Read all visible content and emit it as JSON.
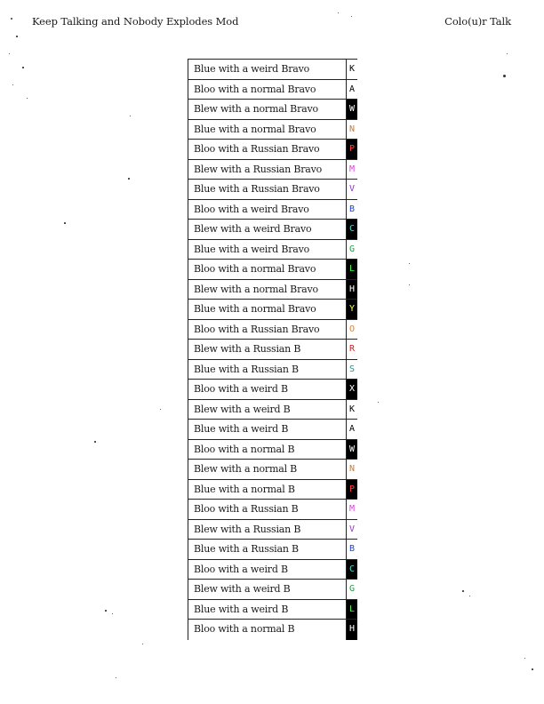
{
  "header": {
    "left": "Keep Talking and Nobody Explodes Mod",
    "right": "Colo(u)r Talk"
  },
  "rows": [
    {
      "phrase": "Blue with a weird Bravo",
      "letter": "K",
      "fg": "#000000",
      "bg": "#ffffff"
    },
    {
      "phrase": "Bloo with a normal Bravo",
      "letter": "A",
      "fg": "#000000",
      "bg": "#ffffff"
    },
    {
      "phrase": "Blew with a normal Bravo",
      "letter": "W",
      "fg": "#ffffff",
      "bg": "#000000"
    },
    {
      "phrase": "Blue with a normal Bravo",
      "letter": "N",
      "fg": "#c87a3a",
      "bg": "#ffffff"
    },
    {
      "phrase": "Bloo with a Russian Bravo",
      "letter": "P",
      "fg": "#ff4040",
      "bg": "#000000"
    },
    {
      "phrase": "Blew with a Russian Bravo",
      "letter": "M",
      "fg": "#e040e0",
      "bg": "#ffffff"
    },
    {
      "phrase": "Blue with a Russian Bravo",
      "letter": "V",
      "fg": "#9a30c8",
      "bg": "#ffffff"
    },
    {
      "phrase": "Bloo with a weird Bravo",
      "letter": "B",
      "fg": "#2040d0",
      "bg": "#ffffff"
    },
    {
      "phrase": "Blew with a weird Bravo",
      "letter": "C",
      "fg": "#40e0e0",
      "bg": "#000000"
    },
    {
      "phrase": "Blue with a weird Bravo",
      "letter": "G",
      "fg": "#20a040",
      "bg": "#ffffff"
    },
    {
      "phrase": "Bloo with a normal Bravo",
      "letter": "L",
      "fg": "#40ff40",
      "bg": "#000000"
    },
    {
      "phrase": "Blew with a normal Bravo",
      "letter": "H",
      "fg": "#ffffff",
      "bg": "#000000"
    },
    {
      "phrase": "Blue with a normal Bravo",
      "letter": "Y",
      "fg": "#ffff40",
      "bg": "#000000"
    },
    {
      "phrase": "Bloo with a Russian Bravo",
      "letter": "O",
      "fg": "#e08030",
      "bg": "#ffffff"
    },
    {
      "phrase": "Blew with a Russian B",
      "letter": "R",
      "fg": "#d02020",
      "bg": "#ffffff"
    },
    {
      "phrase": "Blue with a Russian B",
      "letter": "S",
      "fg": "#209090",
      "bg": "#ffffff"
    },
    {
      "phrase": "Bloo with a weird B",
      "letter": "X",
      "fg": "#ffffff",
      "bg": "#000000"
    },
    {
      "phrase": "Blew with a weird B",
      "letter": "K",
      "fg": "#000000",
      "bg": "#ffffff"
    },
    {
      "phrase": "Blue with a weird B",
      "letter": "A",
      "fg": "#000000",
      "bg": "#ffffff"
    },
    {
      "phrase": "Bloo with a normal B",
      "letter": "W",
      "fg": "#ffffff",
      "bg": "#000000"
    },
    {
      "phrase": "Blew with a normal B",
      "letter": "N",
      "fg": "#c87a3a",
      "bg": "#ffffff"
    },
    {
      "phrase": "Blue with a normal B",
      "letter": "P",
      "fg": "#ff4040",
      "bg": "#000000"
    },
    {
      "phrase": "Bloo with a Russian B",
      "letter": "M",
      "fg": "#e040e0",
      "bg": "#ffffff"
    },
    {
      "phrase": "Blew with a Russian B",
      "letter": "V",
      "fg": "#9a30c8",
      "bg": "#ffffff"
    },
    {
      "phrase": "Blue with a Russian B",
      "letter": "B",
      "fg": "#2040d0",
      "bg": "#ffffff"
    },
    {
      "phrase": "Bloo with a weird B",
      "letter": "C",
      "fg": "#40e0e0",
      "bg": "#000000"
    },
    {
      "phrase": "Blew with a weird B",
      "letter": "G",
      "fg": "#20a040",
      "bg": "#ffffff"
    },
    {
      "phrase": "Blue with a weird B",
      "letter": "L",
      "fg": "#40ff40",
      "bg": "#000000"
    },
    {
      "phrase": "Bloo with a normal B",
      "letter": "H",
      "fg": "#ffffff",
      "bg": "#000000"
    }
  ]
}
